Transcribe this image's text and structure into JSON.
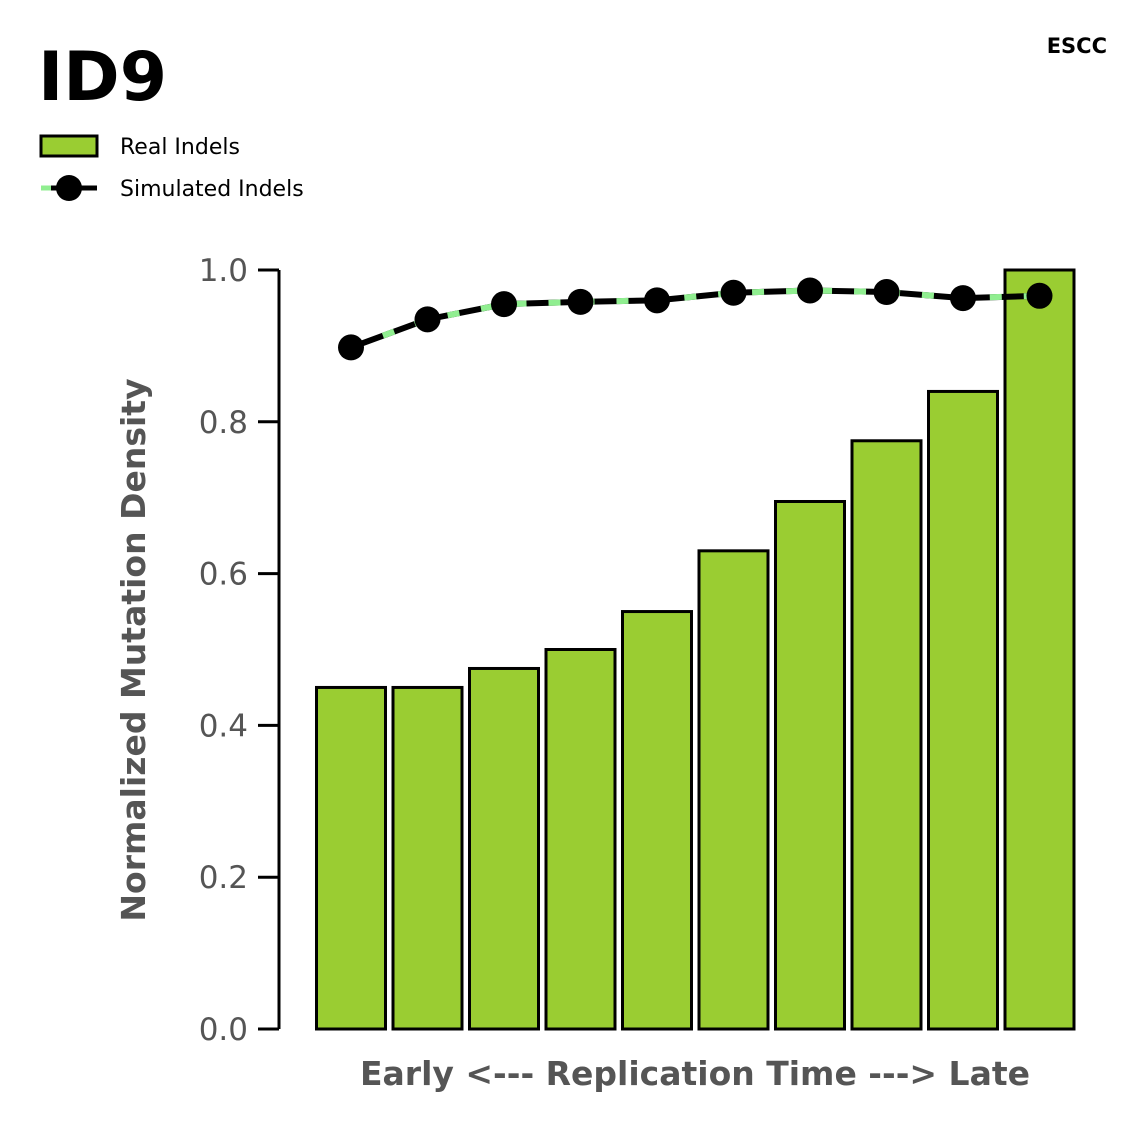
{
  "chart_data": {
    "type": "bar",
    "title": "ID9",
    "subtitle": "ESCC",
    "xlabel": "Early <--- Replication Time ---> Late",
    "ylabel": "Normalized Mutation Density",
    "ylim": [
      0,
      1.0
    ],
    "yticks": [
      "0.0",
      "0.2",
      "0.4",
      "0.6",
      "0.8",
      "1.0"
    ],
    "grid": false,
    "legend_position": "top-left",
    "bar_color": "#9acd32",
    "line_color": "#000000",
    "line_highlight_color": "#90ee90",
    "series": [
      {
        "name": "Real Indels",
        "type": "bar",
        "values": [
          0.45,
          0.45,
          0.475,
          0.5,
          0.55,
          0.63,
          0.695,
          0.775,
          0.84,
          1.0
        ]
      },
      {
        "name": "Simulated Indels",
        "type": "line",
        "values": [
          0.898,
          0.935,
          0.955,
          0.958,
          0.96,
          0.97,
          0.973,
          0.971,
          0.963,
          0.966
        ]
      }
    ]
  }
}
